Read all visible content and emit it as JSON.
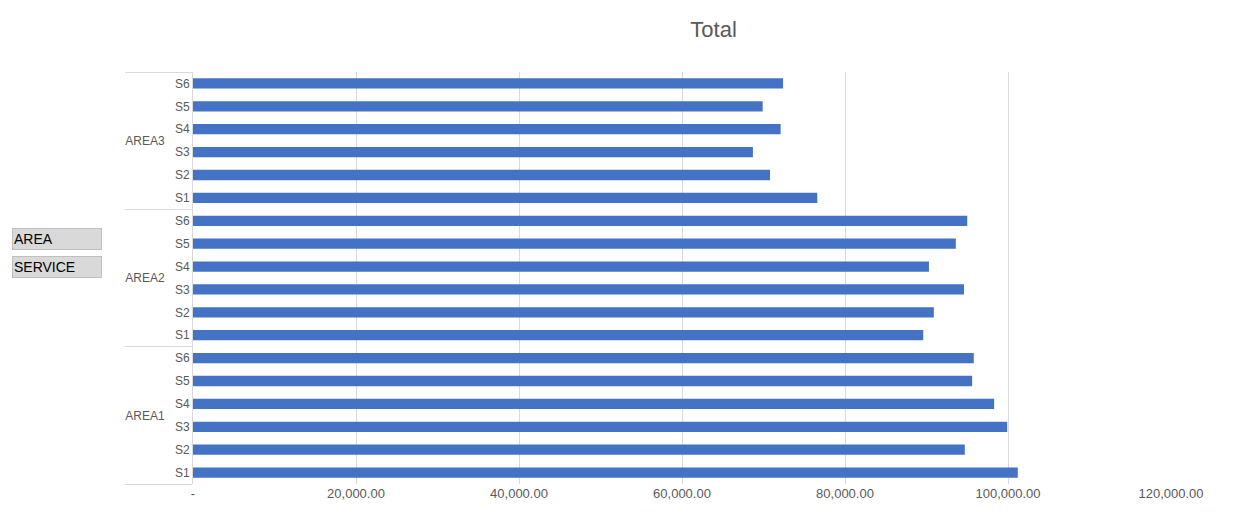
{
  "chart_data": {
    "type": "bar",
    "title": "Total",
    "orientation": "horizontal",
    "groups": [
      "AREA1",
      "AREA1",
      "AREA1",
      "AREA1",
      "AREA1",
      "AREA1",
      "AREA2",
      "AREA2",
      "AREA2",
      "AREA2",
      "AREA2",
      "AREA2",
      "AREA3",
      "AREA3",
      "AREA3",
      "AREA3",
      "AREA3",
      "AREA3"
    ],
    "categories": [
      "S1",
      "S2",
      "S3",
      "S4",
      "S5",
      "S6",
      "S1",
      "S2",
      "S3",
      "S4",
      "S5",
      "S6",
      "S1",
      "S2",
      "S3",
      "S4",
      "S5",
      "S6"
    ],
    "values": [
      101200,
      94700,
      99900,
      98300,
      95600,
      95800,
      89600,
      90900,
      94600,
      90300,
      93600,
      95000,
      76600,
      70800,
      68700,
      72100,
      69900,
      72400
    ],
    "color": "#4472c4",
    "xlim": [
      0,
      120000
    ],
    "xticks": [
      {
        "value": 0,
        "label": "-"
      },
      {
        "value": 20000,
        "label": "20,000.00"
      },
      {
        "value": 40000,
        "label": "40,000.00"
      },
      {
        "value": 60000,
        "label": "60,000.00"
      },
      {
        "value": 80000,
        "label": "80,000.00"
      },
      {
        "value": 100000,
        "label": "100,000.00"
      },
      {
        "value": 120000,
        "label": "120,000.00"
      }
    ],
    "grid": true,
    "annotations": [
      "AREA",
      "SERVICE"
    ]
  }
}
